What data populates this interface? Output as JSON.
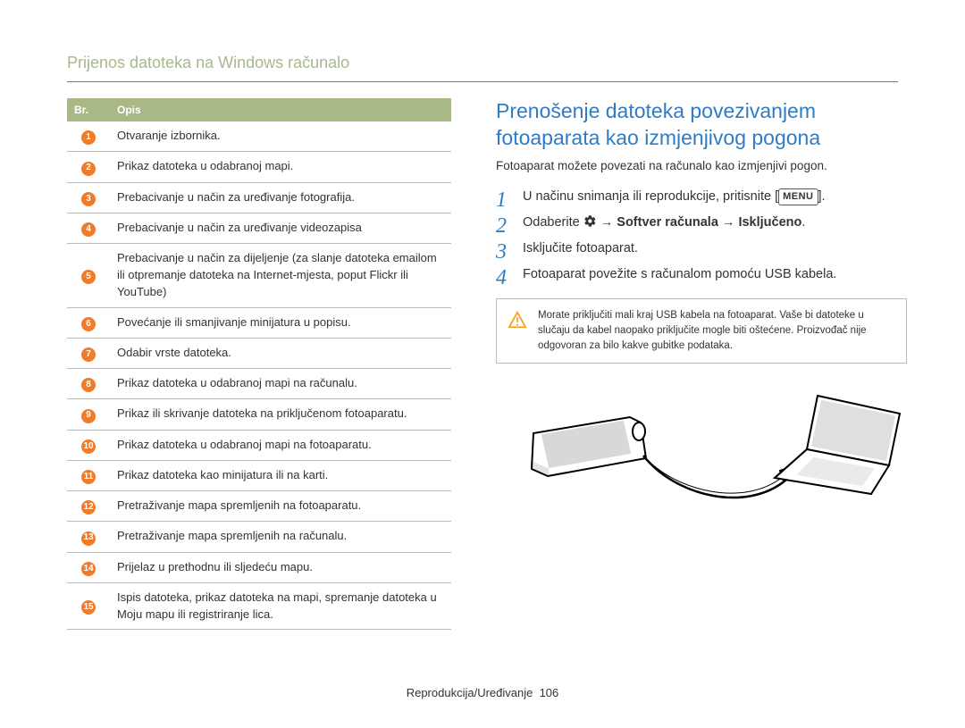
{
  "page_title": "Prijenos datoteka na Windows računalo",
  "table": {
    "headers": {
      "num": "Br.",
      "desc": "Opis"
    },
    "rows": [
      "Otvaranje izbornika.",
      "Prikaz datoteka u odabranoj mapi.",
      "Prebacivanje u način za uređivanje fotografija.",
      "Prebacivanje u način za uređivanje videozapisa",
      "Prebacivanje u način za dijeljenje (za slanje datoteka emailom ili otpremanje datoteka na Internet-mjesta, poput Flickr ili YouTube)",
      "Povećanje ili smanjivanje minijatura u popisu.",
      "Odabir vrste datoteka.",
      "Prikaz datoteka u odabranoj mapi na računalu.",
      "Prikaz ili skrivanje datoteka na priključenom fotoaparatu.",
      "Prikaz datoteka u odabranoj mapi na fotoaparatu.",
      "Prikaz datoteka kao minijatura ili na karti.",
      "Pretraživanje mapa spremljenih na fotoaparatu.",
      "Pretraživanje mapa spremljenih na računalu.",
      "Prijelaz u prethodnu ili sljedeću mapu.",
      "Ispis datoteka, prikaz datoteka na mapi, spremanje datoteka u Moju mapu ili registriranje lica."
    ]
  },
  "right": {
    "heading": "Prenošenje datoteka povezivanjem fotoaparata kao izmjenjivog pogona",
    "intro": "Fotoaparat možete povezati na računalo kao izmjenjivi pogon.",
    "steps": {
      "s1_pre": "U načinu snimanja ili reprodukcije, pritisnite [",
      "s1_menu": "MENU",
      "s1_post": "].",
      "s2_pre": "Odaberite ",
      "s2_bold": " → Softver računala → Isključeno",
      "s2_post": ".",
      "s3": "Isključite fotoaparat.",
      "s4": "Fotoaparat povežite s računalom pomoću USB kabela."
    },
    "warning": "Morate priključiti mali kraj USB kabela na fotoaparat. Vaše bi datoteke u slučaju da kabel naopako priključite mogle biti oštećene. Proizvođač nije odgovoran za bilo kakve gubitke podataka."
  },
  "footer": {
    "label": "Reprodukcija/Uređivanje",
    "page": "106"
  },
  "colors": {
    "heading_blue": "#2f7cc4",
    "title_green": "#a8b88f",
    "table_header_bg": "#a9b985",
    "badge_orange": "#f07c2a",
    "warn_stroke": "#f5a623"
  }
}
